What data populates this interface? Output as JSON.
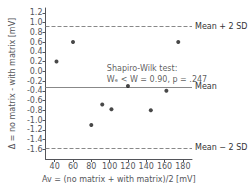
{
  "chart_data": {
    "type": "scatter",
    "x": [
      42,
      60,
      80,
      92,
      102,
      120,
      145,
      162,
      175
    ],
    "values": [
      0.2,
      0.6,
      -1.1,
      -0.68,
      -0.78,
      -0.3,
      -0.8,
      -0.4,
      0.6
    ],
    "color": "#1a1a1a",
    "xlim": [
      30,
      190
    ],
    "ylim": [
      -1.8,
      1.3
    ],
    "xticks": [
      40,
      60,
      80,
      100,
      120,
      140,
      160,
      180
    ],
    "yticks": [
      -1.6,
      -1.4,
      -1.2,
      {
        "value": -1.0,
        "label": "-1.0"
      },
      -0.8,
      -0.6,
      -0.4,
      -0.2,
      {
        "value": 0.0,
        "label": "0.0"
      },
      0.2,
      0.4,
      0.6,
      0.8,
      {
        "value": 1.0,
        "label": "1.0"
      },
      1.2
    ],
    "xlabel": "Av = (no matrix + with matrix)/2 [mV]",
    "ylabel": "Δ = no matrix - with matrix [mV]",
    "grid": false,
    "reference_lines": [
      {
        "value": -0.32,
        "label": "Mean",
        "color": "#888888",
        "line_style": "solid"
      },
      {
        "value": 0.93,
        "label": "Mean + 2 SD",
        "color": "#888888",
        "line_style": "dashed"
      },
      {
        "value": -1.57,
        "label": "Mean − 2 SD",
        "color": "#888888",
        "line_style": "dashed"
      }
    ],
    "annotation": {
      "text": [
        "Shapiro-Wilk test:",
        "Wₑ < W = 0.90, p = .247"
      ],
      "x": 97,
      "y": 0.18
    }
  }
}
